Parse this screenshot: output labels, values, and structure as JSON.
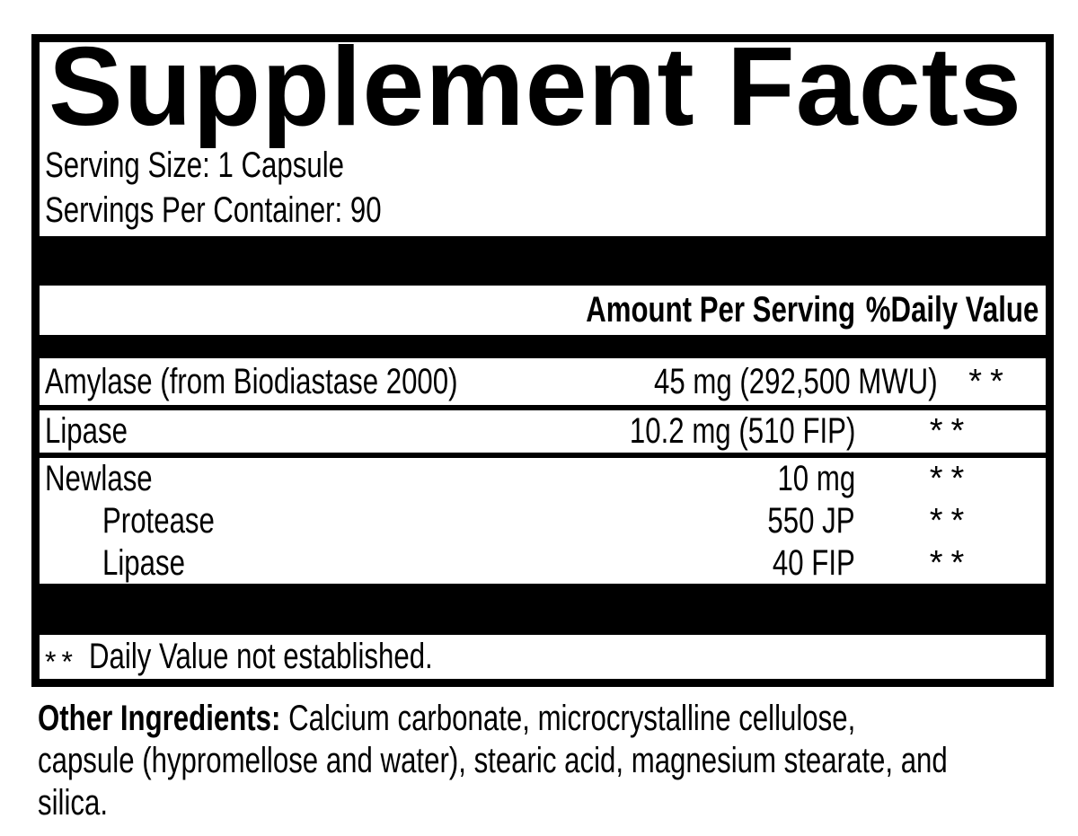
{
  "colors": {
    "ink": "#000000",
    "paper": "#ffffff"
  },
  "panel": {
    "title": "Supplement Facts",
    "serving_size": "Serving Size: 1 Capsule",
    "servings_per_container": "Servings Per Container: 90"
  },
  "table": {
    "amount_header": "Amount Per Serving",
    "dv_header": "%Daily Value",
    "rows": [
      {
        "name": "Amylase (from Biodiastase 2000)",
        "amount": "45 mg (292,500 MWU)",
        "dv": "**"
      },
      {
        "name": "Lipase",
        "amount": "10.2 mg (510 FIP)",
        "dv": "**"
      },
      {
        "name": "Newlase",
        "amount": "10 mg",
        "dv": "**"
      },
      {
        "name": "Protease",
        "amount": "550 JP",
        "dv": "**"
      },
      {
        "name": "Lipase",
        "amount": "40 FIP",
        "dv": "**"
      }
    ]
  },
  "footnote": {
    "symbol": "**",
    "text": "Daily Value not established."
  },
  "other_ingredients": {
    "label": "Other Ingredients:",
    "line1_rest": "Calcium carbonate, microcrystalline cellulose,",
    "line2": "capsule (hypromellose and water), stearic acid, magnesium stearate, and",
    "line3": "silica."
  }
}
